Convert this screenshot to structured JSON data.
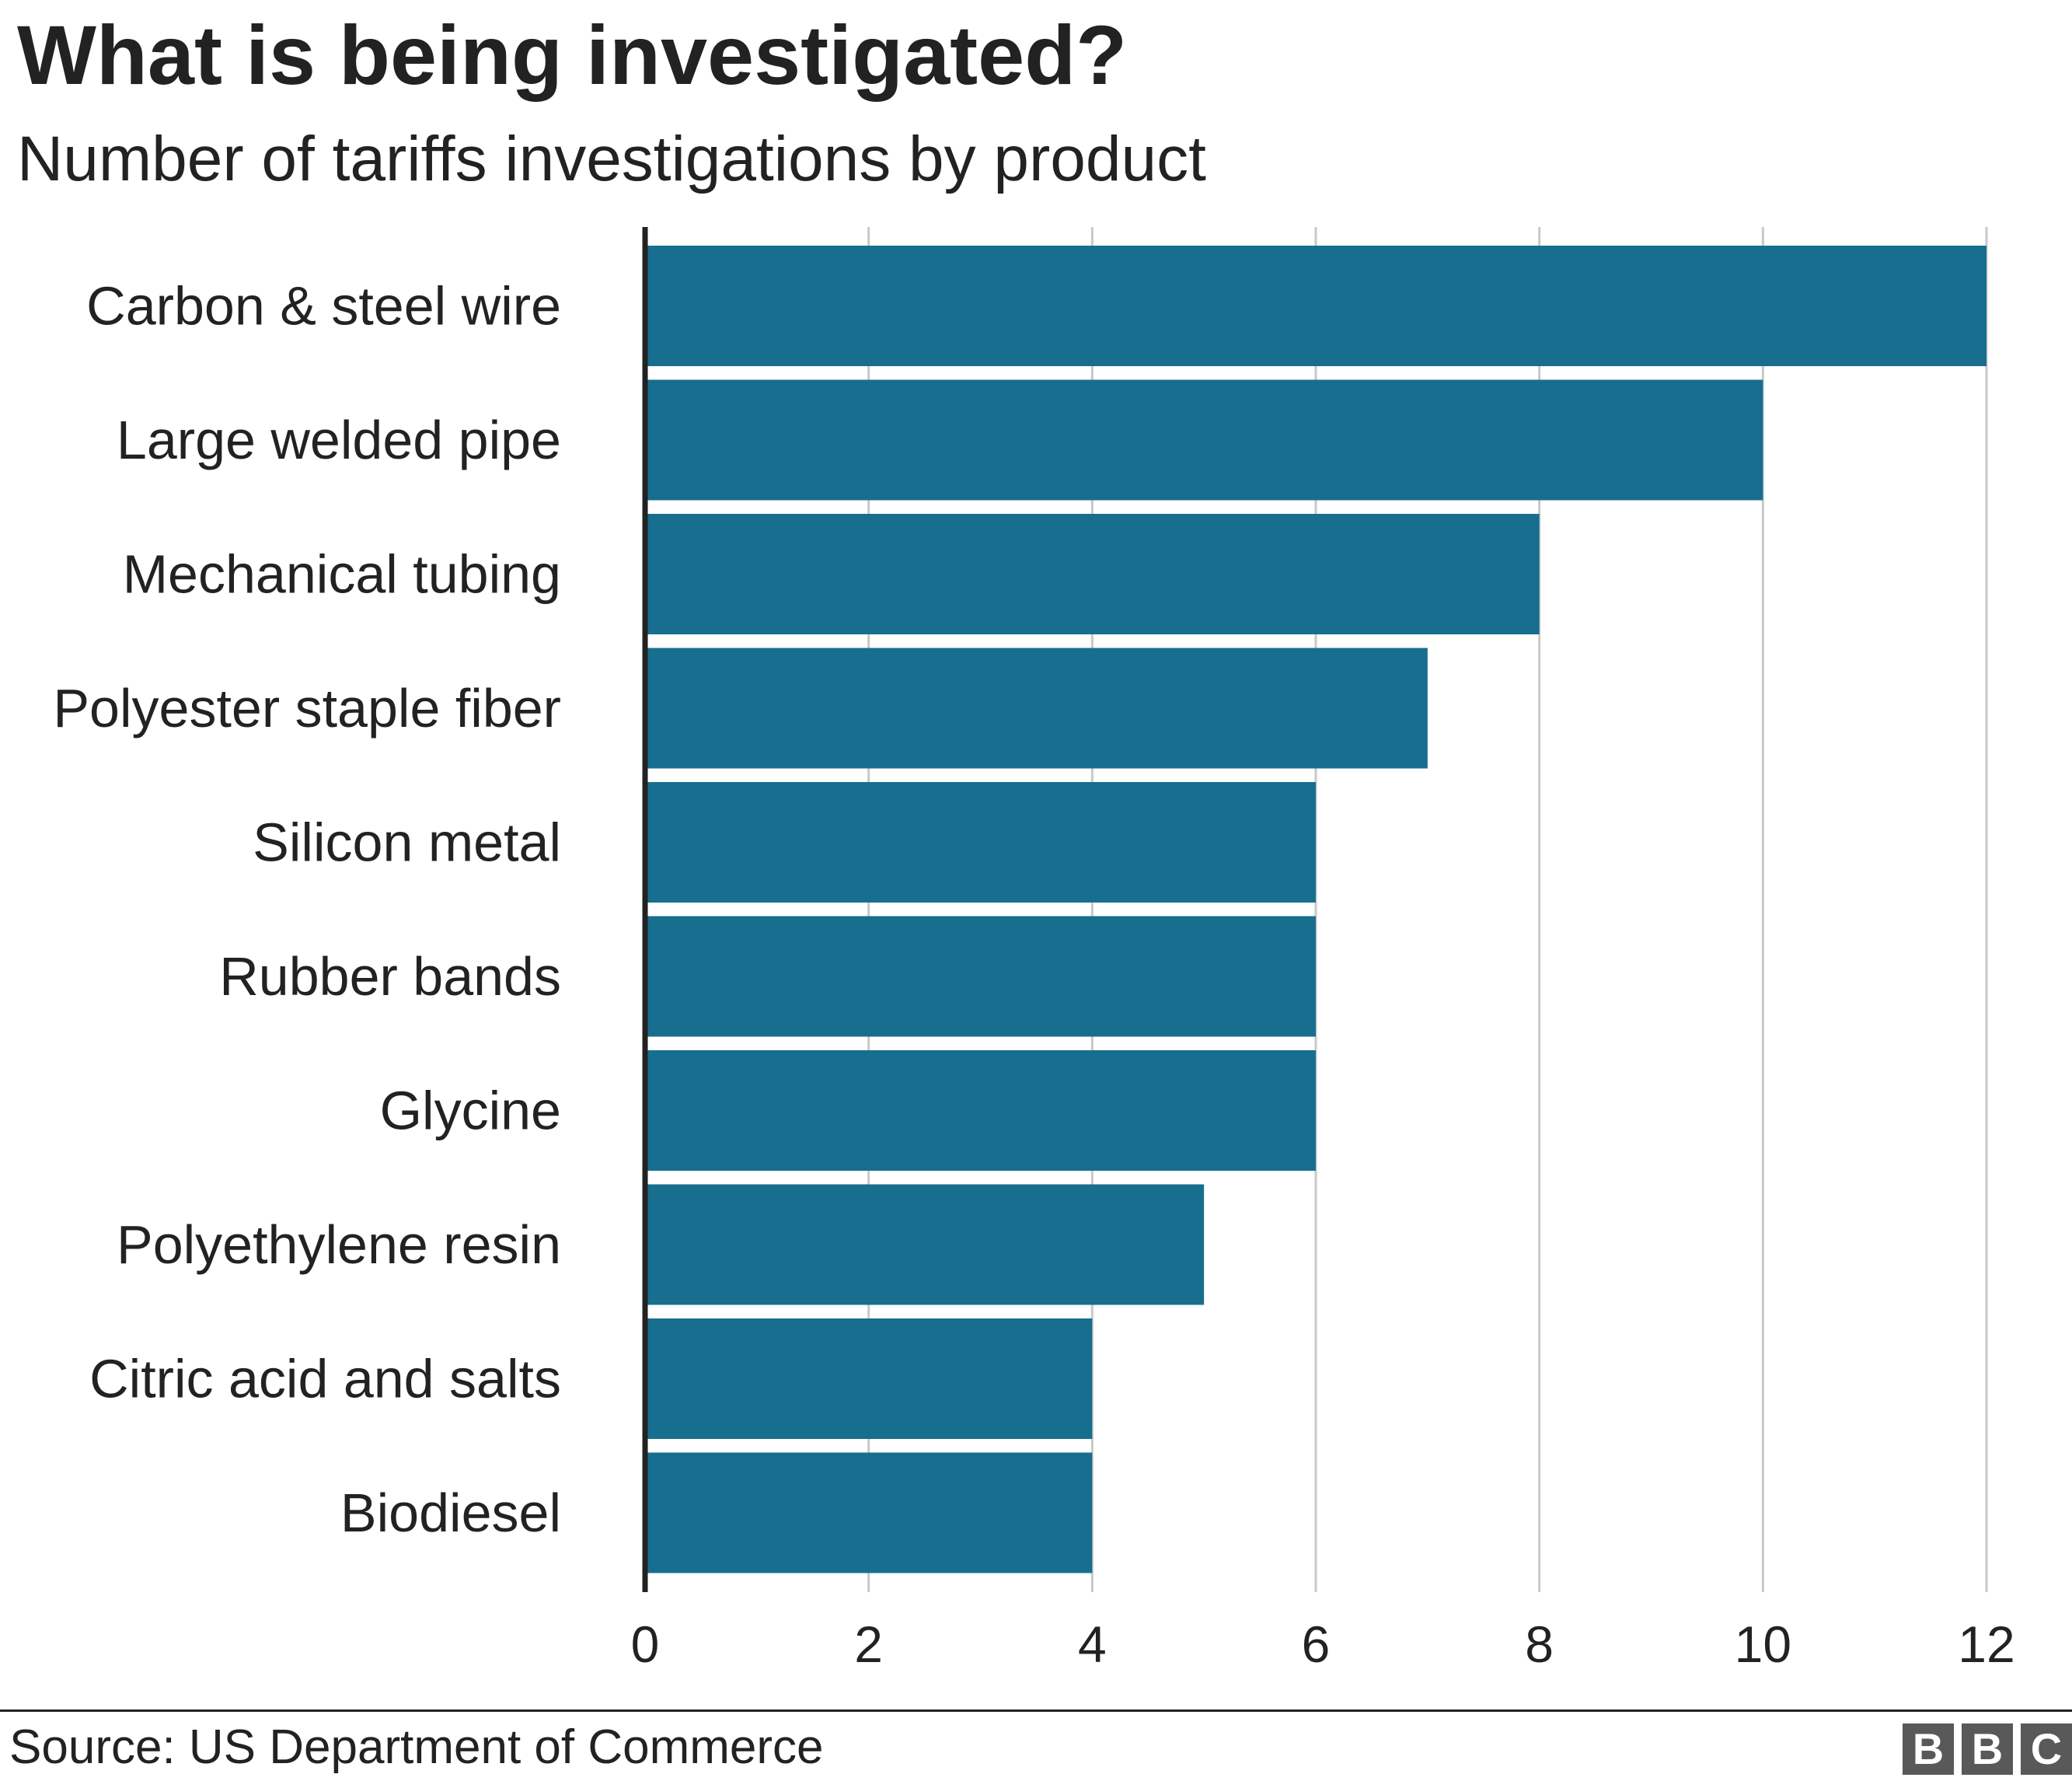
{
  "header": {
    "title": "What is being investigated?",
    "subtitle": "Number of tariffs investigations by product"
  },
  "footer": {
    "source": "Source: US Department of Commerce",
    "logo_letters": [
      "B",
      "B",
      "C"
    ]
  },
  "colors": {
    "bar": "#176e8f",
    "grid": "#c8c8c8",
    "axis": "#222222",
    "text": "#222222"
  },
  "chart_data": {
    "type": "bar",
    "orientation": "horizontal",
    "categories": [
      "Carbon & steel wire",
      "Large welded pipe",
      "Mechanical tubing",
      "Polyester staple fiber",
      "Silicon metal",
      "Rubber bands",
      "Glycine",
      "Polyethylene resin",
      "Citric acid and salts",
      "Biodiesel"
    ],
    "values": [
      12,
      10,
      8,
      7,
      6,
      6,
      6,
      5,
      4,
      4
    ],
    "xlim": [
      0,
      12
    ],
    "xticks": [
      "0",
      "2",
      "4",
      "6",
      "8",
      "10",
      "12"
    ],
    "grid": true
  }
}
